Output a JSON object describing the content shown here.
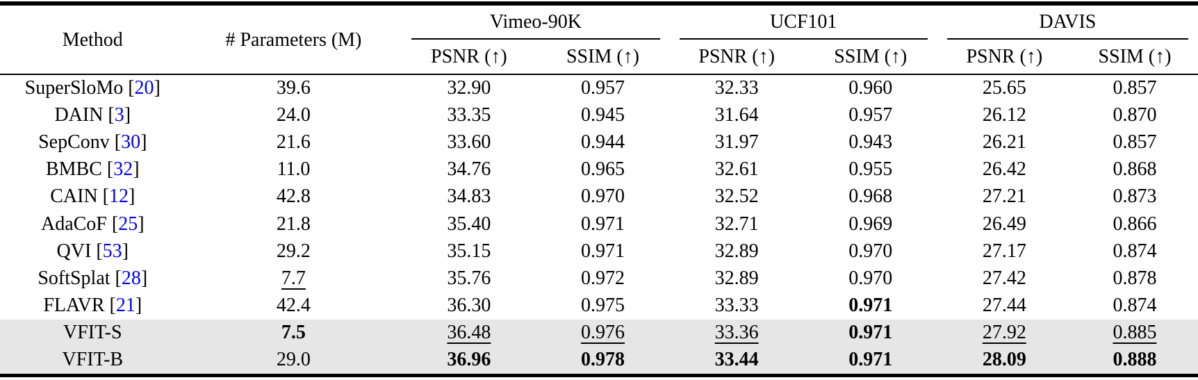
{
  "colors": {
    "citation_blue": "#0000EE",
    "highlight_row": "#E6E6E6",
    "text": "#000000",
    "rule": "#000000"
  },
  "table": {
    "header": {
      "method_label": "Method",
      "params_label": "# Parameters (M)",
      "groups": [
        {
          "label": "Vimeo-90K",
          "metrics": [
            "PSNR (↑)",
            "SSIM (↑)"
          ]
        },
        {
          "label": "UCF101",
          "metrics": [
            "PSNR (↑)",
            "SSIM (↑)"
          ]
        },
        {
          "label": "DAVIS",
          "metrics": [
            "PSNR (↑)",
            "SSIM (↑)"
          ]
        }
      ]
    },
    "rows": [
      {
        "method": "SuperSloMo",
        "cite": "20",
        "highlight": false,
        "values": [
          {
            "text": "39.6",
            "style": "plain"
          },
          {
            "text": "32.90",
            "style": "plain"
          },
          {
            "text": "0.957",
            "style": "plain"
          },
          {
            "text": "32.33",
            "style": "plain"
          },
          {
            "text": "0.960",
            "style": "plain"
          },
          {
            "text": "25.65",
            "style": "plain"
          },
          {
            "text": "0.857",
            "style": "plain"
          }
        ]
      },
      {
        "method": "DAIN",
        "cite": "3",
        "highlight": false,
        "values": [
          {
            "text": "24.0",
            "style": "plain"
          },
          {
            "text": "33.35",
            "style": "plain"
          },
          {
            "text": "0.945",
            "style": "plain"
          },
          {
            "text": "31.64",
            "style": "plain"
          },
          {
            "text": "0.957",
            "style": "plain"
          },
          {
            "text": "26.12",
            "style": "plain"
          },
          {
            "text": "0.870",
            "style": "plain"
          }
        ]
      },
      {
        "method": "SepConv",
        "cite": "30",
        "highlight": false,
        "values": [
          {
            "text": "21.6",
            "style": "plain"
          },
          {
            "text": "33.60",
            "style": "plain"
          },
          {
            "text": "0.944",
            "style": "plain"
          },
          {
            "text": "31.97",
            "style": "plain"
          },
          {
            "text": "0.943",
            "style": "plain"
          },
          {
            "text": "26.21",
            "style": "plain"
          },
          {
            "text": "0.857",
            "style": "plain"
          }
        ]
      },
      {
        "method": "BMBC",
        "cite": "32",
        "highlight": false,
        "values": [
          {
            "text": "11.0",
            "style": "plain"
          },
          {
            "text": "34.76",
            "style": "plain"
          },
          {
            "text": "0.965",
            "style": "plain"
          },
          {
            "text": "32.61",
            "style": "plain"
          },
          {
            "text": "0.955",
            "style": "plain"
          },
          {
            "text": "26.42",
            "style": "plain"
          },
          {
            "text": "0.868",
            "style": "plain"
          }
        ]
      },
      {
        "method": "CAIN",
        "cite": "12",
        "highlight": false,
        "values": [
          {
            "text": "42.8",
            "style": "plain"
          },
          {
            "text": "34.83",
            "style": "plain"
          },
          {
            "text": "0.970",
            "style": "plain"
          },
          {
            "text": "32.52",
            "style": "plain"
          },
          {
            "text": "0.968",
            "style": "plain"
          },
          {
            "text": "27.21",
            "style": "plain"
          },
          {
            "text": "0.873",
            "style": "plain"
          }
        ]
      },
      {
        "method": "AdaCoF",
        "cite": "25",
        "highlight": false,
        "values": [
          {
            "text": "21.8",
            "style": "plain"
          },
          {
            "text": "35.40",
            "style": "plain"
          },
          {
            "text": "0.971",
            "style": "plain"
          },
          {
            "text": "32.71",
            "style": "plain"
          },
          {
            "text": "0.969",
            "style": "plain"
          },
          {
            "text": "26.49",
            "style": "plain"
          },
          {
            "text": "0.866",
            "style": "plain"
          }
        ]
      },
      {
        "method": "QVI",
        "cite": "53",
        "highlight": false,
        "values": [
          {
            "text": "29.2",
            "style": "plain"
          },
          {
            "text": "35.15",
            "style": "plain"
          },
          {
            "text": "0.971",
            "style": "plain"
          },
          {
            "text": "32.89",
            "style": "plain"
          },
          {
            "text": "0.970",
            "style": "plain"
          },
          {
            "text": "27.17",
            "style": "plain"
          },
          {
            "text": "0.874",
            "style": "plain"
          }
        ]
      },
      {
        "method": "SoftSplat",
        "cite": "28",
        "highlight": false,
        "values": [
          {
            "text": "7.7",
            "style": "underline"
          },
          {
            "text": "35.76",
            "style": "plain"
          },
          {
            "text": "0.972",
            "style": "plain"
          },
          {
            "text": "32.89",
            "style": "plain"
          },
          {
            "text": "0.970",
            "style": "plain"
          },
          {
            "text": "27.42",
            "style": "plain"
          },
          {
            "text": "0.878",
            "style": "plain"
          }
        ]
      },
      {
        "method": "FLAVR",
        "cite": "21",
        "highlight": false,
        "values": [
          {
            "text": "42.4",
            "style": "plain"
          },
          {
            "text": "36.30",
            "style": "plain"
          },
          {
            "text": "0.975",
            "style": "plain"
          },
          {
            "text": "33.33",
            "style": "plain"
          },
          {
            "text": "0.971",
            "style": "bold"
          },
          {
            "text": "27.44",
            "style": "plain"
          },
          {
            "text": "0.874",
            "style": "plain"
          }
        ]
      },
      {
        "method": "VFIT-S",
        "cite": "",
        "highlight": true,
        "values": [
          {
            "text": "7.5",
            "style": "bold"
          },
          {
            "text": "36.48",
            "style": "underline"
          },
          {
            "text": "0.976",
            "style": "underline"
          },
          {
            "text": "33.36",
            "style": "underline"
          },
          {
            "text": "0.971",
            "style": "bold"
          },
          {
            "text": "27.92",
            "style": "underline"
          },
          {
            "text": "0.885",
            "style": "underline"
          }
        ]
      },
      {
        "method": "VFIT-B",
        "cite": "",
        "highlight": true,
        "values": [
          {
            "text": "29.0",
            "style": "plain"
          },
          {
            "text": "36.96",
            "style": "bold"
          },
          {
            "text": "0.978",
            "style": "bold"
          },
          {
            "text": "33.44",
            "style": "bold"
          },
          {
            "text": "0.971",
            "style": "bold"
          },
          {
            "text": "28.09",
            "style": "bold"
          },
          {
            "text": "0.888",
            "style": "bold"
          }
        ]
      }
    ]
  }
}
